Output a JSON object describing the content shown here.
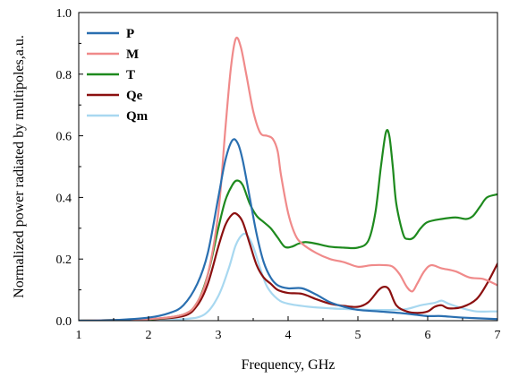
{
  "chart_data": {
    "type": "line",
    "xlabel": "Frequency, GHz",
    "ylabel": "Normalized power radiated by multipoles,a.u.",
    "xlim": [
      1,
      7
    ],
    "ylim": [
      0,
      1.0
    ],
    "x_ticks": [
      1,
      2,
      3,
      4,
      5,
      6,
      7
    ],
    "x_tick_labels": [
      "1",
      "2",
      "3",
      "4",
      "5",
      "6",
      "7"
    ],
    "y_ticks": [
      0.0,
      0.2,
      0.4,
      0.6,
      0.8,
      1.0
    ],
    "y_tick_labels": [
      "0.0",
      "0.2",
      "0.4",
      "0.6",
      "0.8",
      "1.0"
    ],
    "grid": false,
    "legend_position": "top-left",
    "series": [
      {
        "name": "P",
        "color": "#2a6fb0",
        "points": [
          [
            1.0,
            0.0
          ],
          [
            1.5,
            0.002
          ],
          [
            2.0,
            0.01
          ],
          [
            2.3,
            0.025
          ],
          [
            2.5,
            0.05
          ],
          [
            2.7,
            0.12
          ],
          [
            2.85,
            0.22
          ],
          [
            3.0,
            0.4
          ],
          [
            3.1,
            0.52
          ],
          [
            3.2,
            0.585
          ],
          [
            3.28,
            0.575
          ],
          [
            3.35,
            0.52
          ],
          [
            3.45,
            0.4
          ],
          [
            3.55,
            0.28
          ],
          [
            3.65,
            0.19
          ],
          [
            3.75,
            0.14
          ],
          [
            3.85,
            0.115
          ],
          [
            4.0,
            0.105
          ],
          [
            4.2,
            0.105
          ],
          [
            4.4,
            0.085
          ],
          [
            4.6,
            0.06
          ],
          [
            4.8,
            0.045
          ],
          [
            5.0,
            0.035
          ],
          [
            5.3,
            0.03
          ],
          [
            5.6,
            0.025
          ],
          [
            5.8,
            0.02
          ],
          [
            6.0,
            0.015
          ],
          [
            6.2,
            0.015
          ],
          [
            6.5,
            0.01
          ],
          [
            7.0,
            0.005
          ]
        ]
      },
      {
        "name": "M",
        "color": "#f08a8a",
        "points": [
          [
            1.0,
            0.0
          ],
          [
            1.5,
            0.002
          ],
          [
            2.0,
            0.005
          ],
          [
            2.5,
            0.02
          ],
          [
            2.7,
            0.06
          ],
          [
            2.85,
            0.15
          ],
          [
            3.0,
            0.35
          ],
          [
            3.1,
            0.62
          ],
          [
            3.18,
            0.82
          ],
          [
            3.25,
            0.915
          ],
          [
            3.32,
            0.89
          ],
          [
            3.4,
            0.8
          ],
          [
            3.5,
            0.68
          ],
          [
            3.6,
            0.61
          ],
          [
            3.7,
            0.6
          ],
          [
            3.78,
            0.59
          ],
          [
            3.85,
            0.55
          ],
          [
            3.9,
            0.47
          ],
          [
            4.0,
            0.35
          ],
          [
            4.1,
            0.28
          ],
          [
            4.2,
            0.25
          ],
          [
            4.4,
            0.22
          ],
          [
            4.6,
            0.2
          ],
          [
            4.8,
            0.19
          ],
          [
            5.0,
            0.175
          ],
          [
            5.2,
            0.18
          ],
          [
            5.4,
            0.18
          ],
          [
            5.5,
            0.175
          ],
          [
            5.6,
            0.15
          ],
          [
            5.7,
            0.11
          ],
          [
            5.78,
            0.095
          ],
          [
            5.85,
            0.12
          ],
          [
            5.95,
            0.16
          ],
          [
            6.05,
            0.18
          ],
          [
            6.2,
            0.17
          ],
          [
            6.4,
            0.16
          ],
          [
            6.6,
            0.14
          ],
          [
            6.8,
            0.135
          ],
          [
            7.0,
            0.115
          ]
        ]
      },
      {
        "name": "T",
        "color": "#1e8a1e",
        "points": [
          [
            1.0,
            0.0
          ],
          [
            1.5,
            0.002
          ],
          [
            2.0,
            0.004
          ],
          [
            2.5,
            0.02
          ],
          [
            2.7,
            0.06
          ],
          [
            2.85,
            0.15
          ],
          [
            3.0,
            0.3
          ],
          [
            3.1,
            0.39
          ],
          [
            3.2,
            0.44
          ],
          [
            3.27,
            0.455
          ],
          [
            3.35,
            0.44
          ],
          [
            3.45,
            0.38
          ],
          [
            3.55,
            0.34
          ],
          [
            3.65,
            0.32
          ],
          [
            3.75,
            0.3
          ],
          [
            3.85,
            0.27
          ],
          [
            3.95,
            0.24
          ],
          [
            4.05,
            0.24
          ],
          [
            4.15,
            0.25
          ],
          [
            4.25,
            0.255
          ],
          [
            4.4,
            0.25
          ],
          [
            4.6,
            0.24
          ],
          [
            4.8,
            0.237
          ],
          [
            5.0,
            0.237
          ],
          [
            5.15,
            0.26
          ],
          [
            5.25,
            0.35
          ],
          [
            5.33,
            0.5
          ],
          [
            5.4,
            0.61
          ],
          [
            5.45,
            0.6
          ],
          [
            5.5,
            0.5
          ],
          [
            5.55,
            0.38
          ],
          [
            5.65,
            0.28
          ],
          [
            5.72,
            0.265
          ],
          [
            5.8,
            0.27
          ],
          [
            5.9,
            0.3
          ],
          [
            6.0,
            0.32
          ],
          [
            6.2,
            0.33
          ],
          [
            6.4,
            0.335
          ],
          [
            6.55,
            0.33
          ],
          [
            6.65,
            0.34
          ],
          [
            6.75,
            0.37
          ],
          [
            6.85,
            0.4
          ],
          [
            7.0,
            0.41
          ]
        ]
      },
      {
        "name": "Qe",
        "color": "#8b1010",
        "points": [
          [
            1.0,
            0.0
          ],
          [
            1.5,
            0.002
          ],
          [
            2.0,
            0.004
          ],
          [
            2.5,
            0.015
          ],
          [
            2.7,
            0.05
          ],
          [
            2.85,
            0.12
          ],
          [
            3.0,
            0.24
          ],
          [
            3.1,
            0.31
          ],
          [
            3.2,
            0.345
          ],
          [
            3.27,
            0.345
          ],
          [
            3.35,
            0.32
          ],
          [
            3.45,
            0.25
          ],
          [
            3.55,
            0.18
          ],
          [
            3.65,
            0.14
          ],
          [
            3.75,
            0.12
          ],
          [
            3.85,
            0.1
          ],
          [
            4.0,
            0.09
          ],
          [
            4.2,
            0.087
          ],
          [
            4.4,
            0.07
          ],
          [
            4.6,
            0.055
          ],
          [
            4.8,
            0.048
          ],
          [
            5.0,
            0.045
          ],
          [
            5.15,
            0.06
          ],
          [
            5.3,
            0.1
          ],
          [
            5.38,
            0.11
          ],
          [
            5.45,
            0.1
          ],
          [
            5.55,
            0.05
          ],
          [
            5.7,
            0.03
          ],
          [
            5.85,
            0.025
          ],
          [
            6.0,
            0.03
          ],
          [
            6.1,
            0.045
          ],
          [
            6.2,
            0.05
          ],
          [
            6.3,
            0.04
          ],
          [
            6.5,
            0.045
          ],
          [
            6.7,
            0.07
          ],
          [
            6.85,
            0.12
          ],
          [
            7.0,
            0.185
          ]
        ]
      },
      {
        "name": "Qm",
        "color": "#a8d8f0",
        "points": [
          [
            1.0,
            0.0
          ],
          [
            1.5,
            0.001
          ],
          [
            2.0,
            0.002
          ],
          [
            2.5,
            0.005
          ],
          [
            2.8,
            0.02
          ],
          [
            3.0,
            0.08
          ],
          [
            3.15,
            0.17
          ],
          [
            3.25,
            0.245
          ],
          [
            3.35,
            0.28
          ],
          [
            3.42,
            0.275
          ],
          [
            3.5,
            0.24
          ],
          [
            3.6,
            0.17
          ],
          [
            3.7,
            0.11
          ],
          [
            3.85,
            0.07
          ],
          [
            4.0,
            0.055
          ],
          [
            4.3,
            0.045
          ],
          [
            4.6,
            0.04
          ],
          [
            4.9,
            0.037
          ],
          [
            5.2,
            0.035
          ],
          [
            5.5,
            0.035
          ],
          [
            5.7,
            0.038
          ],
          [
            5.9,
            0.05
          ],
          [
            6.1,
            0.058
          ],
          [
            6.2,
            0.065
          ],
          [
            6.3,
            0.055
          ],
          [
            6.5,
            0.04
          ],
          [
            6.7,
            0.03
          ],
          [
            6.9,
            0.03
          ],
          [
            7.0,
            0.03
          ]
        ]
      }
    ]
  }
}
